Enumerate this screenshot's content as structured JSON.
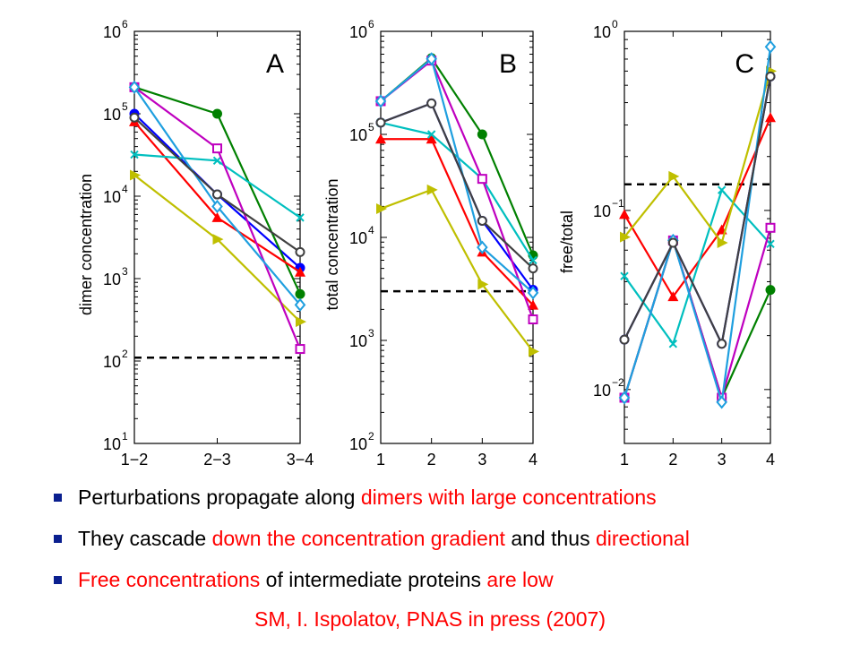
{
  "chart_data": [
    {
      "type": "line",
      "panel_label": "A",
      "ylabel": "dimer concentration",
      "y_scale": "log",
      "ylim": [
        10,
        1000000
      ],
      "y_ticks": [
        {
          "base": "10",
          "exp": "1"
        },
        {
          "base": "10",
          "exp": "2"
        },
        {
          "base": "10",
          "exp": "3"
        },
        {
          "base": "10",
          "exp": "4"
        },
        {
          "base": "10",
          "exp": "5"
        },
        {
          "base": "10",
          "exp": "6"
        }
      ],
      "categories": [
        "1−2",
        "2−3",
        "3−4"
      ],
      "threshold": 110,
      "series": [
        {
          "color": "#0000ff",
          "marker": "circle-filled",
          "values": [
            100000,
            10500,
            1350
          ]
        },
        {
          "color": "#008000",
          "marker": "circle-filled",
          "values": [
            210000,
            100000,
            650
          ]
        },
        {
          "color": "#ff0000",
          "marker": "triangle-up",
          "values": [
            80000,
            5500,
            1200
          ]
        },
        {
          "color": "#00bfbf",
          "marker": "x",
          "values": [
            32000,
            27000,
            5500
          ]
        },
        {
          "color": "#bfbf00",
          "marker": "triangle-right",
          "values": [
            18000,
            3000,
            300
          ]
        },
        {
          "color": "#bf00bf",
          "marker": "square-open",
          "values": [
            210000,
            38000,
            140
          ]
        },
        {
          "color": "#1f9fdf",
          "marker": "diamond-open",
          "values": [
            210000,
            7500,
            480
          ]
        },
        {
          "color": "#404040",
          "marker": "circle-open",
          "values": [
            90000,
            10500,
            2100
          ]
        }
      ]
    },
    {
      "type": "line",
      "panel_label": "B",
      "ylabel": "total concentration",
      "y_scale": "log",
      "ylim": [
        100,
        1000000
      ],
      "y_ticks": [
        {
          "base": "10",
          "exp": "2"
        },
        {
          "base": "10",
          "exp": "3"
        },
        {
          "base": "10",
          "exp": "4"
        },
        {
          "base": "10",
          "exp": "5"
        },
        {
          "base": "10",
          "exp": "6"
        }
      ],
      "categories": [
        "1",
        "2",
        "3",
        "4"
      ],
      "threshold": 3000,
      "series": [
        {
          "color": "#0000ff",
          "marker": "circle-filled",
          "values": [
            130000,
            200000,
            14500,
            3100
          ]
        },
        {
          "color": "#008000",
          "marker": "circle-filled",
          "values": [
            210000,
            550000,
            100000,
            6700
          ]
        },
        {
          "color": "#ff0000",
          "marker": "triangle-up",
          "values": [
            90000,
            90000,
            7200,
            2200
          ]
        },
        {
          "color": "#00bfbf",
          "marker": "x",
          "values": [
            130000,
            100000,
            37000,
            6000
          ]
        },
        {
          "color": "#bfbf00",
          "marker": "triangle-right",
          "values": [
            19000,
            29000,
            3500,
            780
          ]
        },
        {
          "color": "#bf00bf",
          "marker": "square-open",
          "values": [
            210000,
            520000,
            37000,
            1600
          ]
        },
        {
          "color": "#1f9fdf",
          "marker": "diamond-open",
          "values": [
            210000,
            540000,
            8000,
            2900
          ]
        },
        {
          "color": "#404040",
          "marker": "circle-open",
          "values": [
            130000,
            200000,
            14500,
            5000
          ]
        }
      ]
    },
    {
      "type": "line",
      "panel_label": "C",
      "ylabel": "free/total",
      "y_scale": "log",
      "ylim": [
        0.005,
        1
      ],
      "y_ticks": [
        {
          "base": "10",
          "exp": "−2",
          "value": 0.01
        },
        {
          "base": "10",
          "exp": "−1",
          "value": 0.1
        },
        {
          "base": "10",
          "exp": "0",
          "value": 1
        }
      ],
      "categories": [
        "1",
        "2",
        "3",
        "4"
      ],
      "threshold": 0.14,
      "series": [
        {
          "color": "#0000ff",
          "marker": "circle-filled",
          "values": [
            0.019,
            0.066,
            0.018,
            0.56
          ]
        },
        {
          "color": "#008000",
          "marker": "circle-filled",
          "values": [
            0.009,
            0.068,
            0.009,
            0.036
          ]
        },
        {
          "color": "#ff0000",
          "marker": "triangle-up",
          "values": [
            0.095,
            0.033,
            0.078,
            0.33
          ]
        },
        {
          "color": "#00bfbf",
          "marker": "x",
          "values": [
            0.043,
            0.018,
            0.13,
            0.065
          ]
        },
        {
          "color": "#bfbf00",
          "marker": "triangle-right",
          "values": [
            0.071,
            0.155,
            0.066,
            0.6
          ]
        },
        {
          "color": "#bf00bf",
          "marker": "square-open",
          "values": [
            0.009,
            0.068,
            0.009,
            0.08
          ]
        },
        {
          "color": "#1f9fdf",
          "marker": "diamond-open",
          "values": [
            0.009,
            0.068,
            0.0085,
            0.82
          ]
        },
        {
          "color": "#404040",
          "marker": "circle-open",
          "values": [
            0.019,
            0.066,
            0.018,
            0.56
          ]
        }
      ]
    }
  ],
  "bullets": [
    [
      {
        "text": "Perturbations propagate along ",
        "red": false
      },
      {
        "text": "dimers with large concentrations",
        "red": true
      }
    ],
    [
      {
        "text": "They cascade ",
        "red": false
      },
      {
        "text": "down the concentration gradient",
        "red": true
      },
      {
        "text": " and thus ",
        "red": false
      },
      {
        "text": "directional",
        "red": true
      }
    ],
    [
      {
        "text": "Free concentrations",
        "red": true
      },
      {
        "text": " of intermediate proteins ",
        "red": false
      },
      {
        "text": "are low",
        "red": true
      }
    ]
  ],
  "citation": "SM, I. Ispolatov, PNAS in press (2007)",
  "colors": {
    "bullet": "#0a1f8f",
    "highlight": "#ff0000"
  }
}
